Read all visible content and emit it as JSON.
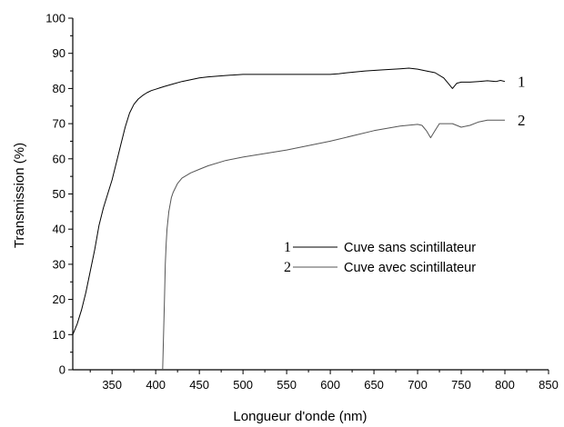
{
  "chart_data": {
    "type": "line",
    "title": "",
    "xlabel": "Longueur d'onde (nm)",
    "ylabel": "Transmission (%)",
    "xlim": [
      305,
      850
    ],
    "ylim": [
      0,
      100
    ],
    "xticks": [
      350,
      400,
      450,
      500,
      550,
      600,
      650,
      700,
      750,
      800,
      850
    ],
    "yticks": [
      0,
      10,
      20,
      30,
      40,
      50,
      60,
      70,
      80,
      90,
      100
    ],
    "grid": false,
    "legend_position": "center-right",
    "series": [
      {
        "name": "Cuve sans scintillateur",
        "number": "1",
        "color": "#000000",
        "x": [
          305,
          310,
          315,
          320,
          325,
          330,
          335,
          340,
          345,
          350,
          355,
          360,
          365,
          370,
          375,
          380,
          385,
          390,
          395,
          400,
          405,
          410,
          420,
          430,
          440,
          450,
          460,
          480,
          500,
          550,
          600,
          610,
          620,
          640,
          660,
          680,
          690,
          700,
          710,
          720,
          730,
          735,
          740,
          745,
          750,
          760,
          770,
          780,
          790,
          795,
          800
        ],
        "y": [
          10,
          13,
          17,
          22,
          28,
          34,
          41,
          46,
          50,
          54,
          59,
          64,
          69,
          73,
          75.5,
          77,
          78,
          78.8,
          79.4,
          79.8,
          80.2,
          80.6,
          81.3,
          82,
          82.5,
          83,
          83.3,
          83.7,
          84,
          84,
          84,
          84.2,
          84.5,
          85,
          85.3,
          85.6,
          85.8,
          85.5,
          85,
          84.5,
          83,
          81.5,
          80,
          81.5,
          81.8,
          81.8,
          82,
          82.2,
          82,
          82.3,
          82
        ]
      },
      {
        "name": "Cuve avec scintillateur",
        "number": "2",
        "color": "#555555",
        "x": [
          408,
          409,
          410,
          411,
          412,
          413,
          415,
          418,
          420,
          425,
          430,
          440,
          450,
          460,
          480,
          500,
          550,
          600,
          650,
          680,
          700,
          705,
          710,
          715,
          720,
          725,
          730,
          740,
          750,
          760,
          770,
          780,
          790,
          800
        ],
        "y": [
          0,
          10,
          20,
          30,
          36,
          40,
          45,
          49,
          50.5,
          53,
          54.5,
          56,
          57,
          58,
          59.5,
          60.5,
          62.5,
          65,
          68,
          69.3,
          69.8,
          69.5,
          68,
          66,
          68,
          70,
          70,
          70,
          69,
          69.5,
          70.5,
          71,
          71,
          71
        ]
      }
    ]
  }
}
